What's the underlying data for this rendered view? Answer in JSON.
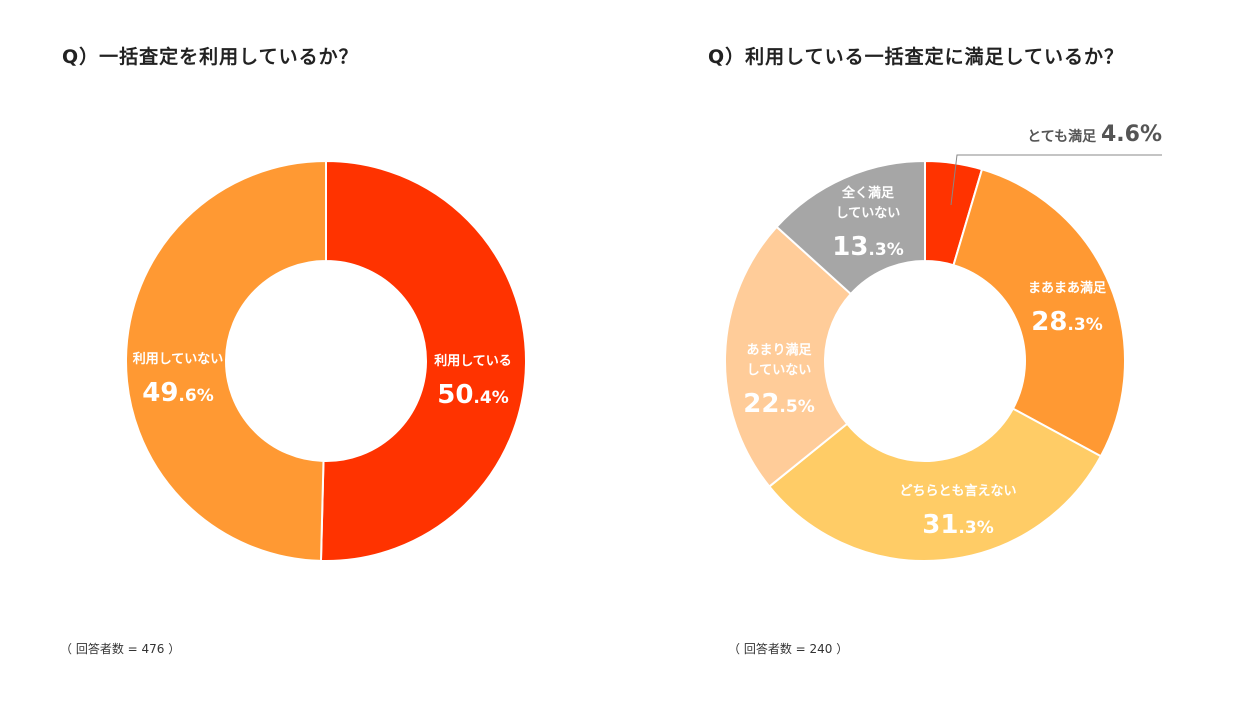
{
  "colors": {
    "red": "#ff3300",
    "orange": "#ff9933",
    "yellow": "#ffcc66",
    "peach": "#ffcc99",
    "gray": "#a6a6a6",
    "text_dark": "#222222",
    "leader_line": "#888888"
  },
  "chart_data": [
    {
      "type": "pie",
      "variant": "donut",
      "title": "Q）一括査定を利用しているか？",
      "note": "（ 回答者数 = 476 ）",
      "unit": "%",
      "slices": [
        {
          "label": "利用している",
          "value": 50.4,
          "value_int": "50",
          "value_dec": ".4",
          "color": "#ff3300"
        },
        {
          "label": "利用していない",
          "value": 49.6,
          "value_int": "49",
          "value_dec": ".6",
          "color": "#ff9933"
        }
      ]
    },
    {
      "type": "pie",
      "variant": "donut",
      "title": "Q）利用している一括査定に満足しているか？",
      "note": "（ 回答者数 = 240 ）",
      "unit": "%",
      "slices": [
        {
          "label": "とても満足",
          "value": 4.6,
          "value_int": "4",
          "value_dec": ".6",
          "color": "#ff3300"
        },
        {
          "label": "まあまあ満足",
          "value": 28.3,
          "value_int": "28",
          "value_dec": ".3",
          "color": "#ff9933"
        },
        {
          "label": "どちらとも言えない",
          "value": 31.3,
          "value_int": "31",
          "value_dec": ".3",
          "color": "#ffcc66"
        },
        {
          "label": "あまり満足\nしていない",
          "value": 22.5,
          "value_int": "22",
          "value_dec": ".5",
          "color": "#ffcc99"
        },
        {
          "label": "全く満足\nしていない",
          "value": 13.3,
          "value_int": "13",
          "value_dec": ".3",
          "color": "#a6a6a6"
        }
      ]
    }
  ]
}
